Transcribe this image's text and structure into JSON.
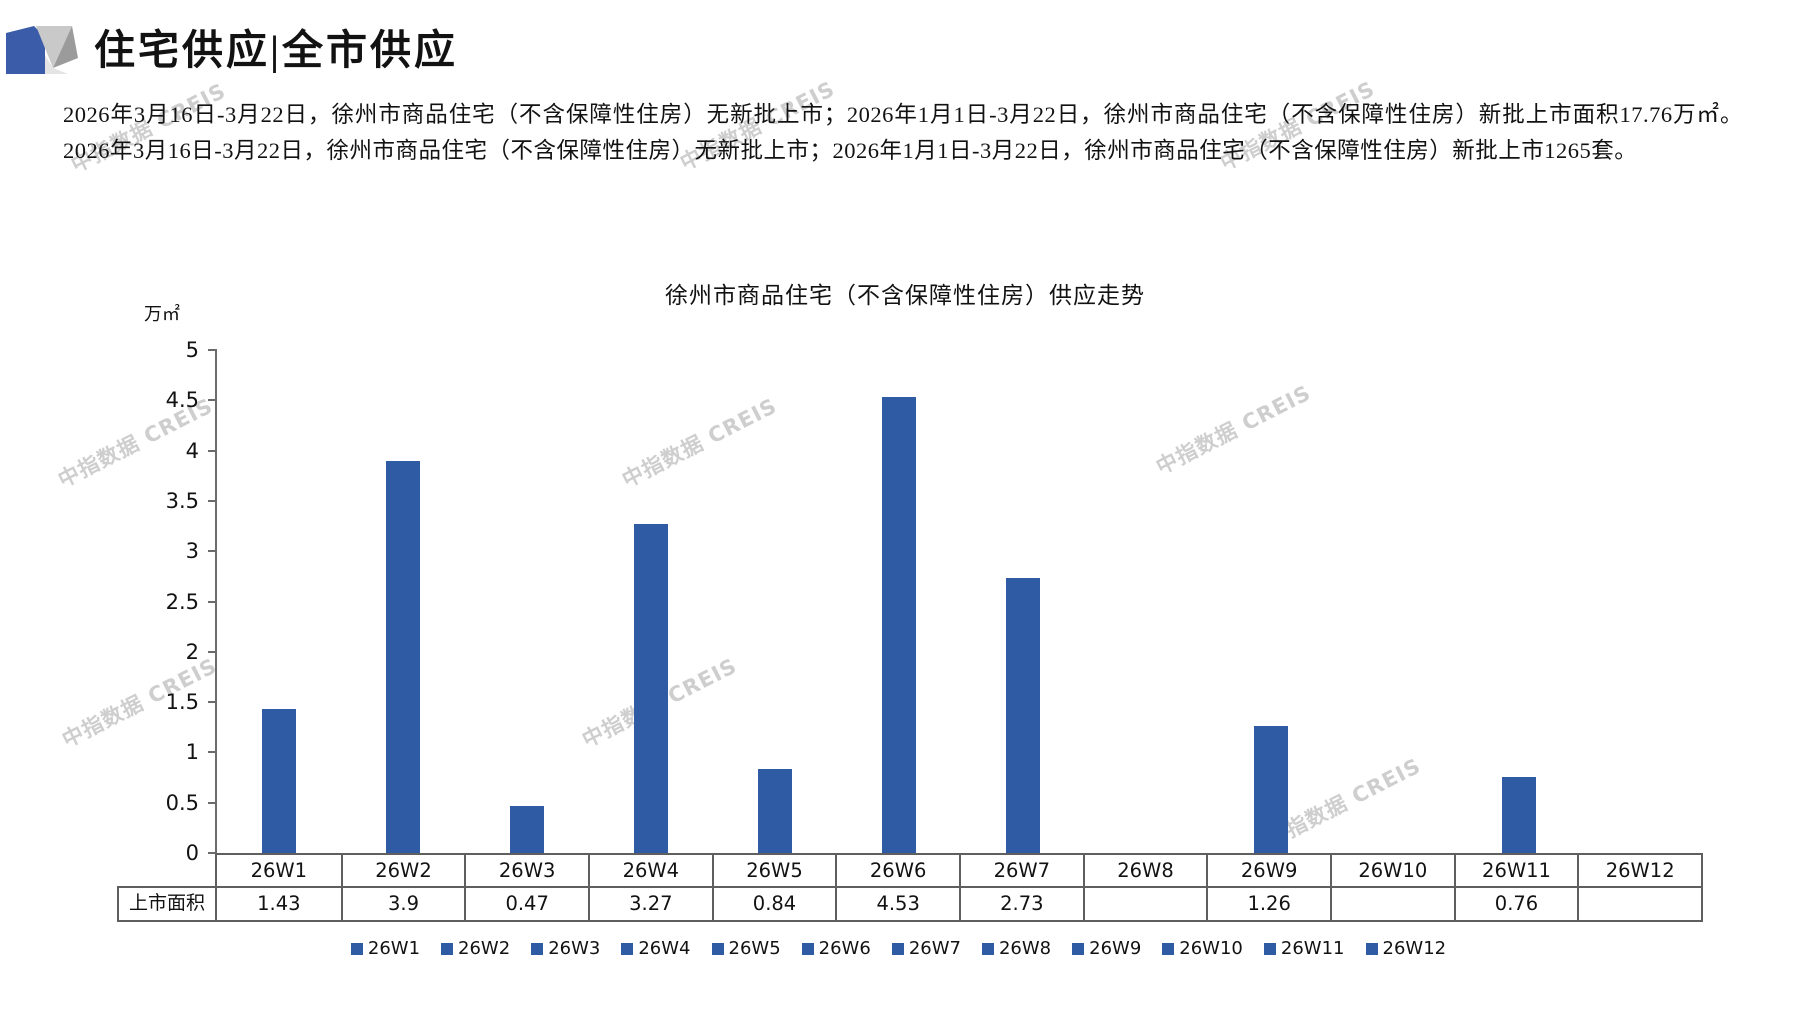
{
  "header": {
    "title": "住宅供应|全市供应"
  },
  "summary": "2026年3月16日-3月22日，徐州市商品住宅（不含保障性住房）无新批上市；2026年1月1日-3月22日，徐州市商品住宅（不含保障性住房）新批上市面积17.76万㎡。2026年3月16日-3月22日，徐州市商品住宅（不含保障性住房）无新批上市；2026年1月1日-3月22日，徐州市商品住宅（不含保障性住房）新批上市1265套。",
  "watermark": {
    "text": "中指数据 CREIS"
  },
  "chart_data": {
    "type": "bar",
    "title": "徐州市商品住宅（不含保障性住房）供应走势",
    "unit_label": "万㎡",
    "categories": [
      "26W1",
      "26W2",
      "26W3",
      "26W4",
      "26W5",
      "26W6",
      "26W7",
      "26W8",
      "26W9",
      "26W10",
      "26W11",
      "26W12"
    ],
    "series": [
      {
        "name": "上市面积",
        "values": [
          1.43,
          3.9,
          0.47,
          3.27,
          0.84,
          4.53,
          2.73,
          null,
          1.26,
          null,
          0.76,
          null
        ]
      }
    ],
    "table_value_labels": [
      "1.43",
      "3.9",
      "0.47",
      "3.27",
      "0.84",
      "4.53",
      "2.73",
      "",
      "1.26",
      "",
      "0.76",
      ""
    ],
    "ylim": [
      0,
      5
    ],
    "ytick_step": 0.5,
    "grid": false,
    "legend_position": "bottom",
    "legend_labels": [
      "26W1",
      "26W2",
      "26W3",
      "26W4",
      "26W5",
      "26W6",
      "26W7",
      "26W8",
      "26W9",
      "26W10",
      "26W11",
      "26W12"
    ],
    "bar_color": "#2F5BA5"
  },
  "colors": {
    "bar": "#2F5BA5",
    "axis": "#6B6B6B",
    "table_border": "#5F5F5F",
    "watermark": "#A5A5A5",
    "logo_blue": "#3B5CA9",
    "logo_gray_light": "#C9C9C9",
    "logo_gray_dark": "#9B9B9B"
  }
}
